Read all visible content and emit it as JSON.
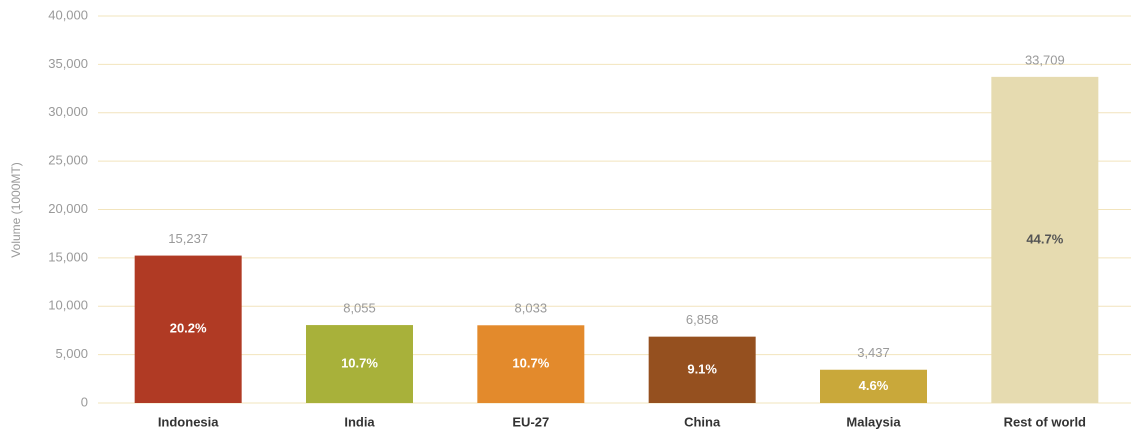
{
  "chart_data": {
    "type": "bar",
    "y_label": "Volume (1000MT)",
    "categories": [
      "Indonesia",
      "India",
      "EU-27",
      "China",
      "Malaysia",
      "Rest of world"
    ],
    "values": [
      15237,
      8055,
      8033,
      6858,
      3437,
      33709
    ],
    "value_labels": [
      "15,237",
      "8,055",
      "8,033",
      "6,858",
      "3,437",
      "33,709"
    ],
    "share_labels": [
      "20.2%",
      "10.7%",
      "10.7%",
      "9.1%",
      "4.6%",
      "44.7%"
    ],
    "colors": [
      "#b03a24",
      "#a8b13a",
      "#e38a2c",
      "#95501f",
      "#c9a83a",
      "#e6dbb0"
    ],
    "ylim": [
      0,
      40000
    ],
    "yticks": [
      0,
      {
        "value": 5000,
        "label": "5,000"
      },
      {
        "value": 10000,
        "label": "10,000"
      },
      {
        "value": 15000,
        "label": "15,000"
      },
      {
        "value": 20000,
        "label": "20,000"
      },
      {
        "value": 25000,
        "label": "25,000"
      },
      {
        "value": 30000,
        "label": "30,000"
      },
      {
        "value": 35000,
        "label": "35,000"
      },
      {
        "value": 40000,
        "label": "40,000"
      }
    ],
    "grid": true
  }
}
